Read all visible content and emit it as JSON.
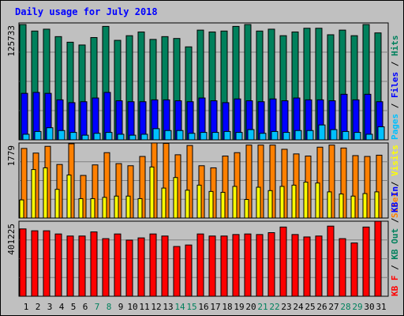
{
  "title": "Daily usage for July 2018",
  "colors": {
    "background": "#C0C0C0",
    "border": "#000000",
    "title": "#0000FF",
    "grid": "#808080",
    "hits": "#00805C",
    "files": "#0000FF",
    "pages": "#00C0FF",
    "sites": "#FF8000",
    "visits": "#FFFF00",
    "kbin": "#FF0000",
    "weekday_label": "#000000",
    "weekend_label": "#00805C",
    "legend_sep": "#000000"
  },
  "chart_data": [
    {
      "type": "bar",
      "panel": "top",
      "ymax_label": "125733",
      "ylim": [
        0,
        125733
      ],
      "grid": true,
      "legend": [
        {
          "label": "Hits",
          "color": "#00805C"
        },
        {
          "label": "Files",
          "color": "#0000FF"
        },
        {
          "label": "Pages",
          "color": "#00C0FF"
        }
      ],
      "categories": [
        "1",
        "2",
        "3",
        "4",
        "5",
        "6",
        "7",
        "8",
        "9",
        "10",
        "11",
        "12",
        "13",
        "14",
        "15",
        "16",
        "17",
        "18",
        "19",
        "20",
        "21",
        "22",
        "23",
        "24",
        "25",
        "26",
        "27",
        "28",
        "29",
        "30",
        "31"
      ],
      "series": [
        {
          "name": "Hits",
          "values": [
            124000,
            117000,
            119000,
            111000,
            105000,
            102000,
            110000,
            122000,
            107000,
            112000,
            116000,
            108000,
            111000,
            109000,
            100000,
            118000,
            116000,
            117000,
            122000,
            124000,
            117000,
            119000,
            112000,
            116000,
            120000,
            120000,
            113000,
            118000,
            112000,
            124000,
            115000
          ]
        },
        {
          "name": "Files",
          "values": [
            50000,
            51000,
            50000,
            43000,
            40000,
            41000,
            45000,
            51000,
            42000,
            41000,
            41000,
            43000,
            43000,
            42000,
            41000,
            45000,
            42000,
            40000,
            44000,
            42000,
            41000,
            44000,
            42000,
            45000,
            43000,
            43000,
            42000,
            49000,
            43000,
            49000,
            41000
          ]
        },
        {
          "name": "Pages",
          "values": [
            6000,
            9000,
            13000,
            10000,
            8000,
            5000,
            7000,
            8000,
            6000,
            5000,
            6000,
            12000,
            10000,
            10000,
            7000,
            8000,
            8000,
            9000,
            8000,
            11000,
            7000,
            9000,
            8000,
            10000,
            10000,
            16000,
            11000,
            9000,
            8000,
            6000,
            14000
          ]
        }
      ]
    },
    {
      "type": "bar",
      "panel": "middle",
      "ymax_label": "1779",
      "ylim": [
        0,
        1779
      ],
      "grid": true,
      "legend": [
        {
          "label": "Visits",
          "color": "#FFFF00"
        },
        {
          "label": "Sites",
          "color": "#FF8000"
        }
      ],
      "categories": [
        "1",
        "2",
        "3",
        "4",
        "5",
        "6",
        "7",
        "8",
        "9",
        "10",
        "11",
        "12",
        "13",
        "14",
        "15",
        "16",
        "17",
        "18",
        "19",
        "20",
        "21",
        "22",
        "23",
        "24",
        "25",
        "26",
        "27",
        "28",
        "29",
        "30",
        "31"
      ],
      "series": [
        {
          "name": "Visits",
          "values": [
            430,
            1150,
            1190,
            680,
            1020,
            460,
            460,
            490,
            520,
            520,
            460,
            1210,
            710,
            960,
            660,
            780,
            630,
            610,
            750,
            440,
            730,
            650,
            750,
            780,
            850,
            830,
            620,
            570,
            520,
            580,
            620
          ]
        },
        {
          "name": "Sites",
          "values": [
            1650,
            1540,
            1700,
            1270,
            1760,
            1010,
            1260,
            1550,
            1290,
            1240,
            1460,
            1780,
            1770,
            1500,
            1720,
            1240,
            1190,
            1470,
            1550,
            1730,
            1730,
            1730,
            1630,
            1520,
            1470,
            1680,
            1730,
            1660,
            1480,
            1460,
            1490
          ]
        }
      ]
    },
    {
      "type": "bar",
      "panel": "bottom",
      "ymax_label": "401225",
      "ylim": [
        0,
        401225
      ],
      "grid": true,
      "legend": [
        {
          "label": "KB In",
          "color": "#0000FF"
        },
        {
          "label": "KB Out",
          "color": "#00805C"
        },
        {
          "label": "KB F",
          "color": "#FF0000"
        }
      ],
      "categories": [
        "1",
        "2",
        "3",
        "4",
        "5",
        "6",
        "7",
        "8",
        "9",
        "10",
        "11",
        "12",
        "13",
        "14",
        "15",
        "16",
        "17",
        "18",
        "19",
        "20",
        "21",
        "22",
        "23",
        "24",
        "25",
        "26",
        "27",
        "28",
        "29",
        "30",
        "31"
      ],
      "series": [
        {
          "name": "KB F",
          "values": [
            360000,
            350000,
            350000,
            333000,
            322000,
            322000,
            344000,
            308000,
            333000,
            300000,
            312000,
            333000,
            322000,
            266000,
            274000,
            333000,
            322000,
            322000,
            330000,
            333000,
            330000,
            340000,
            370000,
            330000,
            317000,
            322000,
            375000,
            308000,
            285000,
            370000,
            401000
          ]
        }
      ]
    }
  ],
  "x_labels": [
    {
      "label": "1",
      "weekend": false
    },
    {
      "label": "2",
      "weekend": false
    },
    {
      "label": "3",
      "weekend": false
    },
    {
      "label": "4",
      "weekend": false
    },
    {
      "label": "5",
      "weekend": false
    },
    {
      "label": "6",
      "weekend": false
    },
    {
      "label": "7",
      "weekend": true
    },
    {
      "label": "8",
      "weekend": true
    },
    {
      "label": "9",
      "weekend": false
    },
    {
      "label": "10",
      "weekend": false
    },
    {
      "label": "11",
      "weekend": false
    },
    {
      "label": "12",
      "weekend": false
    },
    {
      "label": "13",
      "weekend": false
    },
    {
      "label": "14",
      "weekend": true
    },
    {
      "label": "15",
      "weekend": true
    },
    {
      "label": "16",
      "weekend": false
    },
    {
      "label": "17",
      "weekend": false
    },
    {
      "label": "18",
      "weekend": false
    },
    {
      "label": "19",
      "weekend": false
    },
    {
      "label": "20",
      "weekend": false
    },
    {
      "label": "21",
      "weekend": true
    },
    {
      "label": "22",
      "weekend": true
    },
    {
      "label": "23",
      "weekend": false
    },
    {
      "label": "24",
      "weekend": false
    },
    {
      "label": "25",
      "weekend": false
    },
    {
      "label": "26",
      "weekend": false
    },
    {
      "label": "27",
      "weekend": false
    },
    {
      "label": "28",
      "weekend": true
    },
    {
      "label": "29",
      "weekend": true
    },
    {
      "label": "30",
      "weekend": false
    },
    {
      "label": "31",
      "weekend": false
    }
  ]
}
